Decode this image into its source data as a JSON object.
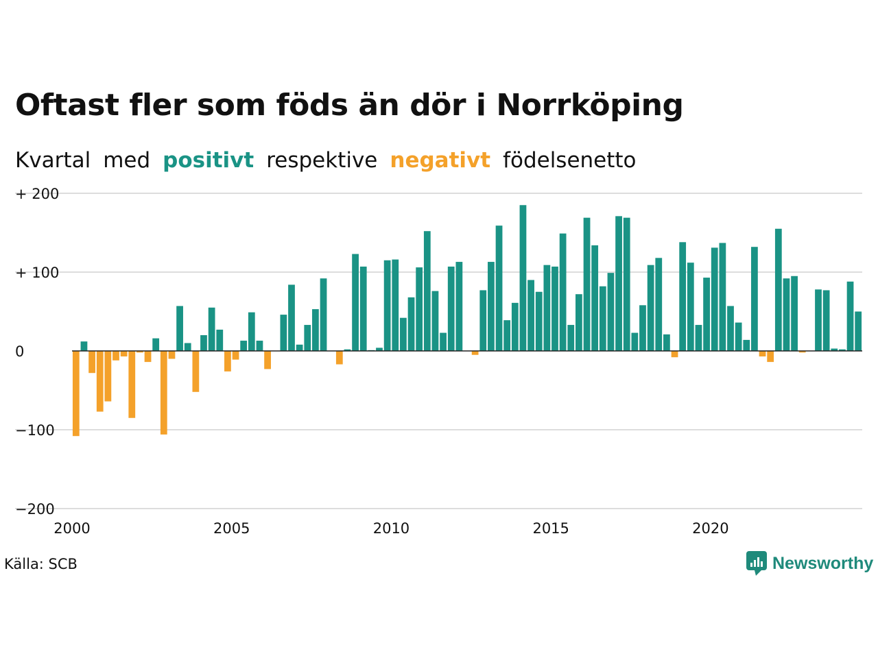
{
  "title": "Oftast fler som föds än dör i Norrköping",
  "subtitle": {
    "w1": "Kvartal",
    "w2": "med",
    "positive": "positivt",
    "w3": "respektive",
    "negative": "negativt",
    "w4": "födelsenetto"
  },
  "source": "Källa: SCB",
  "brand": "Newsworthy",
  "colors": {
    "positive": "#1a9385",
    "negative": "#f4a12a",
    "grid": "#dddddd",
    "zero": "#222222"
  },
  "chart_data": {
    "type": "bar",
    "title": "Oftast fler som föds än dör i Norrköping",
    "xlabel": "",
    "ylabel": "",
    "x_start": "2000-Q1",
    "frequency": "quarter",
    "ylim": [
      -200,
      200
    ],
    "yticks": [
      200,
      100,
      0,
      -100,
      -200
    ],
    "ytick_labels": [
      "+ 200",
      "+ 100",
      "0",
      "−100",
      "−200"
    ],
    "xticks": [
      "2000",
      "2005",
      "2010",
      "2015",
      "2020"
    ],
    "grid": true,
    "legend": "none",
    "values": [
      -108,
      12,
      -28,
      -77,
      -64,
      -12,
      -7,
      -85,
      -2,
      -14,
      16,
      -106,
      -10,
      57,
      10,
      -52,
      20,
      55,
      27,
      -26,
      -11,
      13,
      49,
      13,
      -23,
      0,
      46,
      84,
      8,
      33,
      53,
      92,
      0,
      -17,
      2,
      123,
      107,
      1,
      4,
      115,
      116,
      42,
      68,
      106,
      152,
      76,
      23,
      107,
      113,
      0,
      -5,
      77,
      113,
      159,
      39,
      61,
      185,
      90,
      75,
      109,
      107,
      149,
      33,
      72,
      169,
      134,
      82,
      99,
      171,
      169,
      23,
      58,
      109,
      118,
      21,
      -8,
      138,
      112,
      33,
      93,
      131,
      137,
      57,
      36,
      14,
      132,
      -7,
      -14,
      155,
      92,
      95,
      -2,
      0,
      78,
      77,
      3,
      2,
      88,
      50
    ]
  }
}
